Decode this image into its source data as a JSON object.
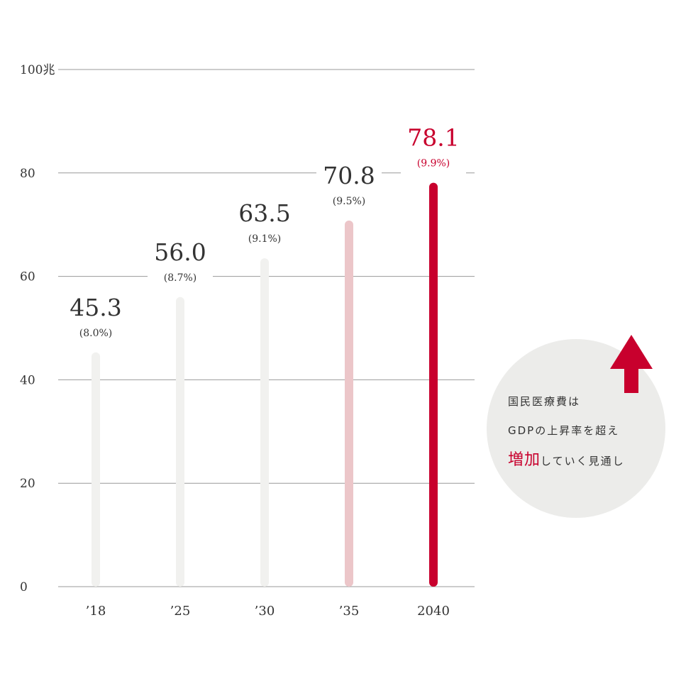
{
  "chart_data": {
    "type": "bar",
    "categories": [
      "’18",
      "’25",
      "’30",
      "’35",
      "2040"
    ],
    "values": [
      45.3,
      56.0,
      63.5,
      70.8,
      78.1
    ],
    "value_labels": [
      "45.3",
      "56.0",
      "63.5",
      "70.8",
      "78.1"
    ],
    "gdp_share_labels": [
      "(8.0%)",
      "(8.7%)",
      "(9.1%)",
      "(9.5%)",
      "(9.9%)"
    ],
    "bar_colors": [
      "#f1f1ef",
      "#f1f1ef",
      "#f1f1ef",
      "#ecc6c9",
      "#c8002d"
    ],
    "label_colors": [
      "#333333",
      "#333333",
      "#333333",
      "#333333",
      "#c8002d"
    ],
    "yticks": [
      0,
      20,
      40,
      60,
      80,
      100
    ],
    "ytick_labels": [
      "0",
      "20",
      "40",
      "60",
      "80",
      "100兆"
    ],
    "ylim": [
      0,
      100
    ],
    "grid": true,
    "title": "",
    "xlabel": "",
    "ylabel": ""
  },
  "callout": {
    "line1": "国民医療費は",
    "line2": "GDPの上昇率を超え",
    "line3_highlight": "増加",
    "line3_rest": "していく見通し"
  },
  "colors": {
    "accent": "#c8002d",
    "grid": "#999999",
    "text": "#333333",
    "callout_bg": "#ececea"
  },
  "icons": {
    "arrow": "up-arrow-icon"
  }
}
